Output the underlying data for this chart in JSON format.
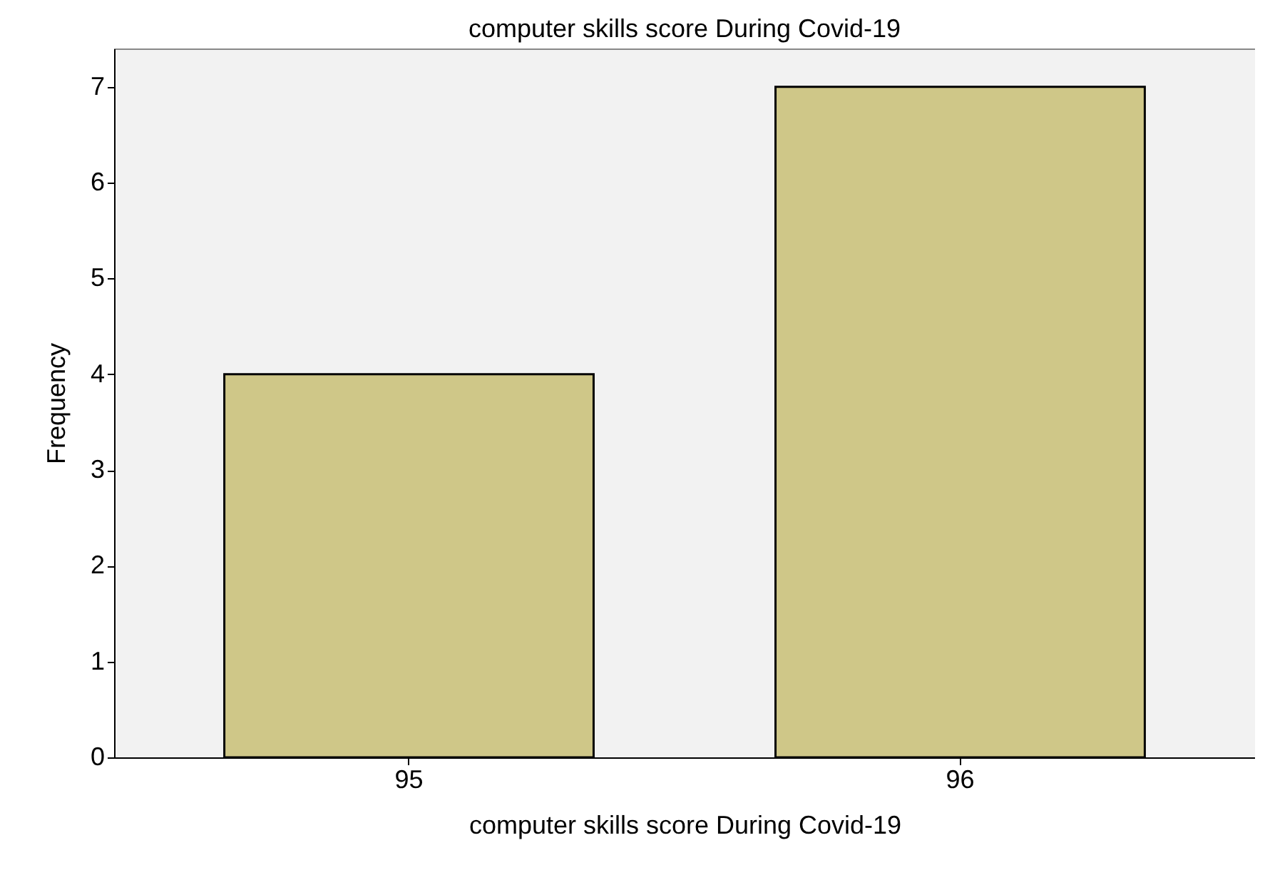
{
  "chart_data": {
    "type": "bar",
    "title": "computer skills score During Covid-19",
    "xlabel": "computer skills score During Covid-19",
    "ylabel": "Frequency",
    "categories": [
      "95",
      "96"
    ],
    "values": [
      4,
      7
    ],
    "color": "#cfc788",
    "ylim": [
      0,
      7.4
    ],
    "yticks": [
      0,
      1,
      2,
      3,
      4,
      5,
      6,
      7
    ],
    "grid": false
  }
}
